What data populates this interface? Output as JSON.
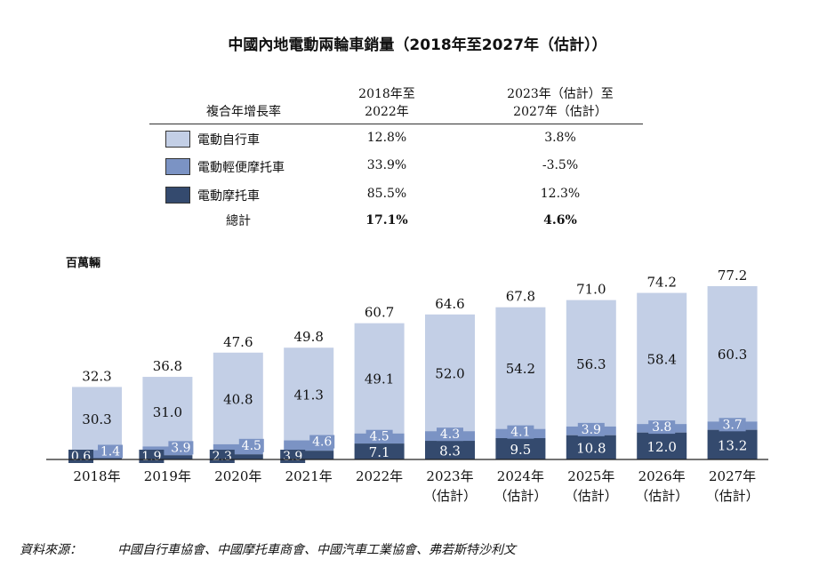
{
  "title": "中國內地電動兩輪車銷量（2018年至2027年（估計））",
  "cagr_table": {
    "header_label": "複合年增長率",
    "col1_line1": "2018年至",
    "col1_line2": "2022年",
    "col2_line1": "2023年（估計）至",
    "col2_line2": "2027年（估計）",
    "rows": [
      {
        "label": "電動自行車",
        "v1": "12.8%",
        "v2": "3.8%"
      },
      {
        "label": "電動輕便摩托車",
        "v1": "33.9%",
        "v2": "-3.5%"
      },
      {
        "label": "電動摩托車",
        "v1": "85.5%",
        "v2": "12.3%"
      }
    ],
    "total": {
      "label": "總計",
      "v1": "17.1%",
      "v2": "4.6%"
    }
  },
  "colors": {
    "ebike": "#c3cfe6",
    "moped": "#7b93c4",
    "motorcycle": "#344a6e",
    "bike_text": "#111111",
    "moped_text": "#ffffff",
    "moto_text": "#ffffff"
  },
  "unit_label": "百萬輛",
  "chart_data": {
    "type": "bar",
    "stacked": true,
    "categories": [
      [
        "2018年"
      ],
      [
        "2019年"
      ],
      [
        "2020年"
      ],
      [
        "2021年"
      ],
      [
        "2022年"
      ],
      [
        "2023年",
        "（估計）"
      ],
      [
        "2024年",
        "（估計）"
      ],
      [
        "2025年",
        "（估計）"
      ],
      [
        "2026年",
        "（估計）"
      ],
      [
        "2027年",
        "（估計）"
      ]
    ],
    "series": [
      {
        "name": "電動摩托車",
        "values": [
          0.6,
          1.9,
          2.3,
          3.9,
          7.1,
          8.3,
          9.5,
          10.8,
          12.0,
          13.2
        ],
        "labels": [
          "0.6",
          "1.9",
          "2.3",
          "3.9",
          "7.1",
          "8.3",
          "9.5",
          "10.8",
          "12.0",
          "13.2"
        ]
      },
      {
        "name": "電動輕便摩托車",
        "values": [
          1.4,
          3.9,
          4.5,
          4.6,
          4.5,
          4.3,
          4.1,
          3.9,
          3.8,
          3.7
        ],
        "labels": [
          "1.4",
          "3.9",
          "4.5",
          "4.6",
          "4.5",
          "4.3",
          "4.1",
          "3.9",
          "3.8",
          "3.7"
        ]
      },
      {
        "name": "電動自行車",
        "values": [
          30.3,
          31.0,
          40.8,
          41.3,
          49.1,
          52.0,
          54.2,
          56.3,
          58.4,
          60.3
        ],
        "labels": [
          "30.3",
          "31.0",
          "40.8",
          "41.3",
          "49.1",
          "52.0",
          "54.2",
          "56.3",
          "58.4",
          "60.3"
        ]
      }
    ],
    "totals": [
      "32.3",
      "36.8",
      "47.6",
      "49.8",
      "60.7",
      "64.6",
      "67.8",
      "71.0",
      "74.2",
      "77.2"
    ],
    "total_values": [
      32.3,
      36.8,
      47.6,
      49.8,
      60.7,
      64.6,
      67.8,
      71.0,
      74.2,
      77.2
    ],
    "ylabel": "百萬輛",
    "ylim": [
      0,
      77.2
    ]
  },
  "source": {
    "label": "資料來源：",
    "text": "中國自行車協會、中國摩托車商會、中國汽車工業協會、弗若斯特沙利文"
  }
}
